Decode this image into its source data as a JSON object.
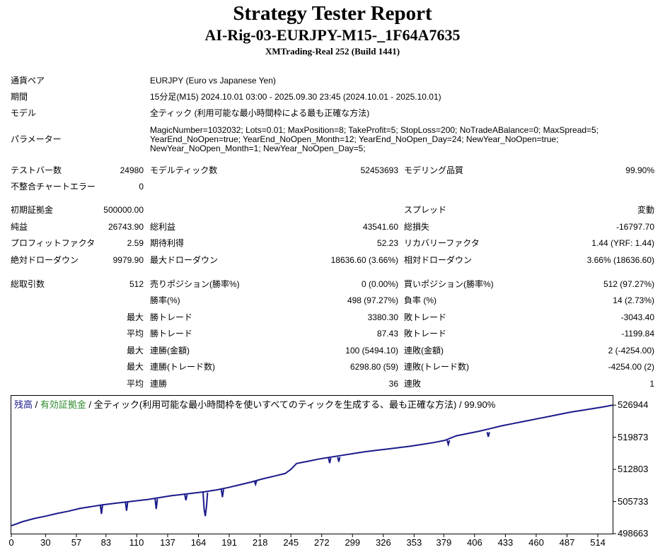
{
  "header": {
    "title": "Strategy Tester Report",
    "expert": "AI-Rig-03-EURJPY-M15-_1F64A7635",
    "server": "XMTrading-Real 252 (Build 1441)"
  },
  "settings": {
    "symbol_label": "通貨ペア",
    "symbol": "EURJPY (Euro vs Japanese Yen)",
    "period_label": "期間",
    "period": "15分足(M15) 2024.10.01 03:00 - 2025.09.30 23:45 (2024.10.01 - 2025.10.01)",
    "model_label": "モデル",
    "model": "全ティック (利用可能な最小時間枠による最も正確な方法)",
    "params_label": "パラメーター",
    "params_line1": "MagicNumber=1032032; Lots=0.01; MaxPosition=8; TakeProfit=5; StopLoss=200; NoTradeABalance=0; MaxSpread=5;",
    "params_line2": "YearEnd_NoOpen=true; YearEnd_NoOpen_Month=12; YearEnd_NoOpen_Day=24; NewYear_NoOpen=true;",
    "params_line3": "NewYear_NoOpen_Month=1; NewYear_NoOpen_Day=5;"
  },
  "stats": {
    "bars_label": "テストバー数",
    "bars": "24980",
    "ticks_label": "モデルティック数",
    "ticks": "52453693",
    "quality_label": "モデリング品質",
    "quality": "99.90%",
    "mismatch_label": "不整合チャートエラー",
    "mismatch": "0",
    "deposit_label": "初期証拠金",
    "deposit": "500000.00",
    "spread_label": "スプレッド",
    "spread": "変動",
    "net_label": "純益",
    "net": "26743.90",
    "gross_profit_label": "総利益",
    "gross_profit": "43541.60",
    "gross_loss_label": "総損失",
    "gross_loss": "-16797.70",
    "pf_label": "プロフィットファクタ",
    "pf": "2.59",
    "expected_label": "期待利得",
    "expected": "52.23",
    "recovery_label": "リカバリーファクタ",
    "recovery": "1.44 (YRF: 1.44)",
    "abs_dd_label": "絶対ドローダウン",
    "abs_dd": "9979.90",
    "max_dd_label": "最大ドローダウン",
    "max_dd": "18636.60 (3.66%)",
    "rel_dd_label": "相対ドローダウン",
    "rel_dd": "3.66% (18636.60)",
    "trades_label": "総取引数",
    "trades": "512",
    "short_label": "売りポジション(勝率%)",
    "short": "0 (0.00%)",
    "long_label": "買いポジション(勝率%)",
    "long": "512 (97.27%)",
    "win_pct_label": "勝率(%)",
    "win_pct": "498 (97.27%)",
    "loss_pct_label": "負率 (%)",
    "loss_pct": "14 (2.73%)",
    "q_max": "最大",
    "q_avg": "平均",
    "win_trade_label": "勝トレード",
    "loss_trade_label": "敗トレード",
    "max_win": "3380.30",
    "max_loss": "-3043.40",
    "avg_win": "87.43",
    "avg_loss": "-1199.84",
    "cons_win_money_label": "連勝(金額)",
    "cons_win_money": "100 (5494.10)",
    "cons_loss_money_label": "連敗(金額)",
    "cons_loss_money": "2 (-4254.00)",
    "cons_win_count_label": "連勝(トレード数)",
    "cons_win_count": "6298.80 (59)",
    "cons_loss_count_label": "連敗(トレード数)",
    "cons_loss_count": "-4254.00 (2)",
    "avg_cons_win_label": "連勝",
    "avg_cons_win": "36",
    "avg_cons_loss_label": "連敗",
    "avg_cons_loss": "1"
  },
  "chart": {
    "legend_balance": "残高",
    "legend_sep1": " / ",
    "legend_equity": "有効証拠金",
    "legend_rest": " / 全ティック(利用可能な最小時間枠を使いすべてのティックを生成する、最も正確な方法) / 99.90%",
    "colors": {
      "balance": "#1a1a8a",
      "equity": "#2e8b2e",
      "axis": "#000000"
    }
  },
  "chart_data": {
    "type": "line",
    "title": "",
    "xlabel": "",
    "ylabel": "",
    "xlim": [
      0,
      527
    ],
    "ylim": [
      498663,
      529000
    ],
    "x_ticks": [
      0,
      30,
      57,
      83,
      110,
      137,
      164,
      191,
      218,
      245,
      272,
      299,
      326,
      353,
      379,
      406,
      433,
      460,
      487,
      514
    ],
    "y_ticks": [
      498663,
      505733,
      512803,
      519873,
      526944
    ],
    "series": [
      {
        "name": "残高",
        "x": [
          0,
          10,
          20,
          30,
          40,
          50,
          60,
          70,
          80,
          90,
          100,
          110,
          120,
          130,
          140,
          150,
          160,
          170,
          180,
          190,
          200,
          210,
          220,
          230,
          240,
          245,
          250,
          260,
          270,
          280,
          290,
          300,
          310,
          320,
          330,
          340,
          350,
          360,
          370,
          380,
          390,
          400,
          410,
          420,
          430,
          440,
          450,
          460,
          470,
          480,
          490,
          500,
          510,
          520,
          527
        ],
        "y": [
          500400,
          501300,
          502000,
          502500,
          503100,
          503600,
          504200,
          504600,
          505000,
          505300,
          505600,
          505900,
          506200,
          506600,
          507000,
          507300,
          507600,
          507900,
          508300,
          508800,
          509400,
          510000,
          510700,
          511300,
          511900,
          512800,
          514100,
          514600,
          515100,
          515500,
          515900,
          516300,
          516700,
          517000,
          517300,
          517600,
          517900,
          518300,
          518700,
          519200,
          520200,
          520700,
          521200,
          521800,
          522400,
          522900,
          523400,
          523900,
          524400,
          524900,
          525400,
          525800,
          526200,
          526600,
          526944
        ]
      },
      {
        "name": "有効証拠金",
        "x": [
          78,
          79,
          80,
          100,
          101,
          102,
          126,
          127,
          128,
          152,
          153,
          154,
          168,
          169,
          170,
          171,
          172,
          184,
          185,
          186,
          213,
          214,
          215,
          278,
          279,
          280,
          286,
          287,
          288,
          382,
          383,
          384,
          417,
          418,
          419
        ],
        "y": [
          505000,
          503000,
          505000,
          505600,
          503700,
          505600,
          506300,
          504100,
          506300,
          507200,
          506000,
          507200,
          507700,
          504000,
          502500,
          504500,
          507700,
          508400,
          506700,
          508400,
          510300,
          509500,
          510300,
          515300,
          514200,
          515300,
          515500,
          514500,
          515500,
          519200,
          518300,
          519200,
          521000,
          520000,
          521000
        ]
      }
    ]
  }
}
